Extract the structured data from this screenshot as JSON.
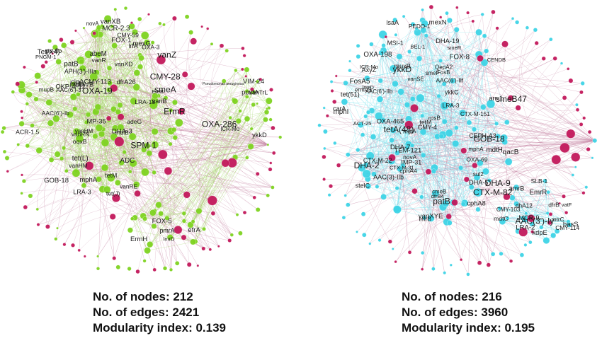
{
  "networks": [
    {
      "id": "left",
      "node_color": "#7ed321",
      "hub_color": "#c2185b",
      "edge_color": "#a5d86a",
      "cross_edge_color": "#c98aa8",
      "stats": {
        "nodes_label": "No. of nodes: 212",
        "edges_label": "No. of edges: 2421",
        "modularity_label": "Modularity index: 0.139"
      },
      "labels": [
        "vanZ",
        "DHA-3",
        "mexG",
        "LRA-18",
        "vanVB",
        "APH(3')-IIIa",
        "LRA-3",
        "patB",
        "novA",
        "smeA",
        "PNGM-1",
        "tet(J)",
        "vanXD",
        "OXA-3",
        "Tet(X4)",
        "EreB",
        "oqxB",
        "AAC(6')-3",
        "CMY-28",
        "cipACMY-113",
        "imiH",
        "mupB",
        "MCR-2.3",
        "AAC(6')-Ib",
        "abeM",
        "mphA",
        "ADC",
        "OXA-19",
        "vanRN",
        "ACR-1.5",
        "vanHM",
        "tetM",
        "CMY-59",
        "adeG",
        "vanB",
        "tet(L)",
        "ErmR",
        "OKP-A-12",
        "MP-35",
        "vanR",
        "lrfA",
        "vanXB",
        "FOX-1",
        "pp-flo",
        "dfrA26",
        "SPM-1",
        "mdfB",
        "GOB-18",
        "vanHM",
        "vanRE",
        "vanTrL",
        "pmrA",
        "VIM-24",
        "lmrD",
        "OXA-286",
        "FOX-5",
        "poxtA",
        "ErmH",
        "ICR-Mo",
        "Pseudomonas aeruginosa",
        "ykkD",
        "efrA"
      ]
    },
    {
      "id": "right",
      "node_color": "#3ed4e6",
      "hub_color": "#c2185b",
      "edge_color": "#7fe3ee",
      "cross_edge_color": "#c98aa8",
      "stats": {
        "nodes_label": "No. of nodes: 216",
        "edges_label": "No. of edges: 3960",
        "modularity_label": "Modularity index: 0.195"
      },
      "labels": [
        "CTX-M-82",
        "CTX-M-151",
        "DHA-19",
        "CTX-M-31",
        "TEM-121",
        "FosA5",
        "IMP-31",
        "BEL-1",
        "dfrB4",
        "patB",
        "mphA",
        "lmrB",
        "OXA-69",
        "AAC(3)-IIb",
        "CENDB",
        "DHA-7",
        "qacB",
        "ACT-25",
        "smeB47",
        "novA",
        "LRA-3",
        "CMY-4",
        "AAC(6')-IIb",
        "lmrD",
        "mphI",
        "DHA-5",
        "carA",
        "tetA(48)",
        "ICR-Mo",
        "AxyZ",
        "FOX-8",
        "cphA4",
        "vanSE",
        "tet(51)",
        "PEDO-1",
        "QepA2",
        "GOB-18",
        "smeF",
        "stelC",
        "cphA8",
        "cmeB",
        "sul2",
        "MSI-1",
        "lsaA",
        "mgtA",
        "ykkD",
        "arr-1",
        "OXA-198",
        "CTX-M-22",
        "FosB",
        "ermA5",
        "rosB",
        "smeR",
        "tetM",
        "DHA-9",
        "CEPH-A3",
        "ykkC",
        "mexN",
        "OXA-465",
        "AAC(6')-Ilf",
        "muxB",
        "vanXYE",
        "mdtH",
        "DHA-2",
        "mdtC",
        "MCR-9",
        "mtrC",
        "vatF",
        "kdpE",
        "amrB",
        "CMY-103",
        "basS",
        "AAC(3')-Iy",
        "SLB-1",
        "LRA-2",
        "CMY-114",
        "dhA12",
        "EmrR",
        "dfrB"
      ]
    }
  ]
}
